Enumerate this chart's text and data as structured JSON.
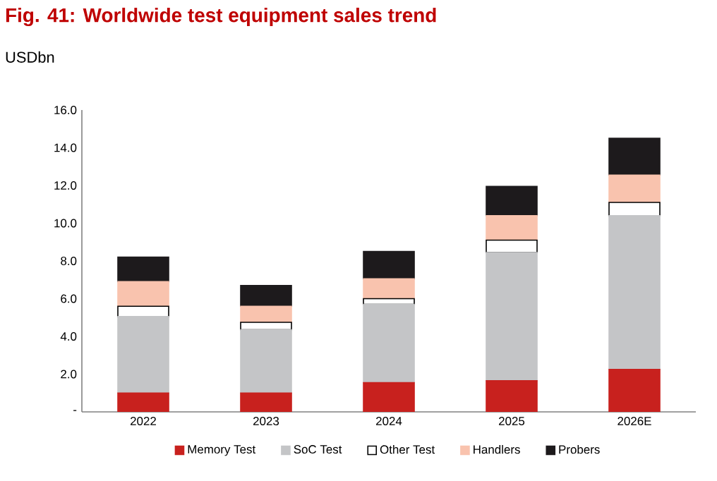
{
  "chart_data": {
    "type": "bar",
    "title": "Fig. 41: Worldwide test equipment sales trend",
    "ylabel": "USDbn",
    "categories": [
      "2022",
      "2023",
      "2024",
      "2025",
      "2026E"
    ],
    "stacked": true,
    "series": [
      {
        "name": "Memory Test",
        "color": "#c8211e",
        "values": [
          1.0,
          1.0,
          1.55,
          1.65,
          2.25
        ]
      },
      {
        "name": "SoC Test",
        "color": "#c4c5c7",
        "values": [
          4.05,
          3.35,
          4.15,
          6.8,
          8.15
        ]
      },
      {
        "name": "Other Test",
        "color": "#ffffff",
        "values": [
          0.55,
          0.4,
          0.3,
          0.65,
          0.7
        ]
      },
      {
        "name": "Handlers",
        "color": "#f9c3ae",
        "values": [
          1.3,
          0.85,
          1.05,
          1.3,
          1.45
        ]
      },
      {
        "name": "Probers",
        "color": "#1d1a1c",
        "values": [
          1.3,
          1.1,
          1.45,
          1.55,
          1.95
        ]
      }
    ],
    "ylim": [
      0,
      16
    ],
    "yticks": [
      {
        "value": 0,
        "label": "-"
      },
      {
        "value": 2,
        "label": "2.0"
      },
      {
        "value": 4,
        "label": "4.0"
      },
      {
        "value": 6,
        "label": "6.0"
      },
      {
        "value": 8,
        "label": "8.0"
      },
      {
        "value": 10,
        "label": "10.0"
      },
      {
        "value": 12,
        "label": "12.0"
      },
      {
        "value": 14,
        "label": "14.0"
      },
      {
        "value": 16,
        "label": "16.0"
      }
    ],
    "legend": "bottom"
  }
}
